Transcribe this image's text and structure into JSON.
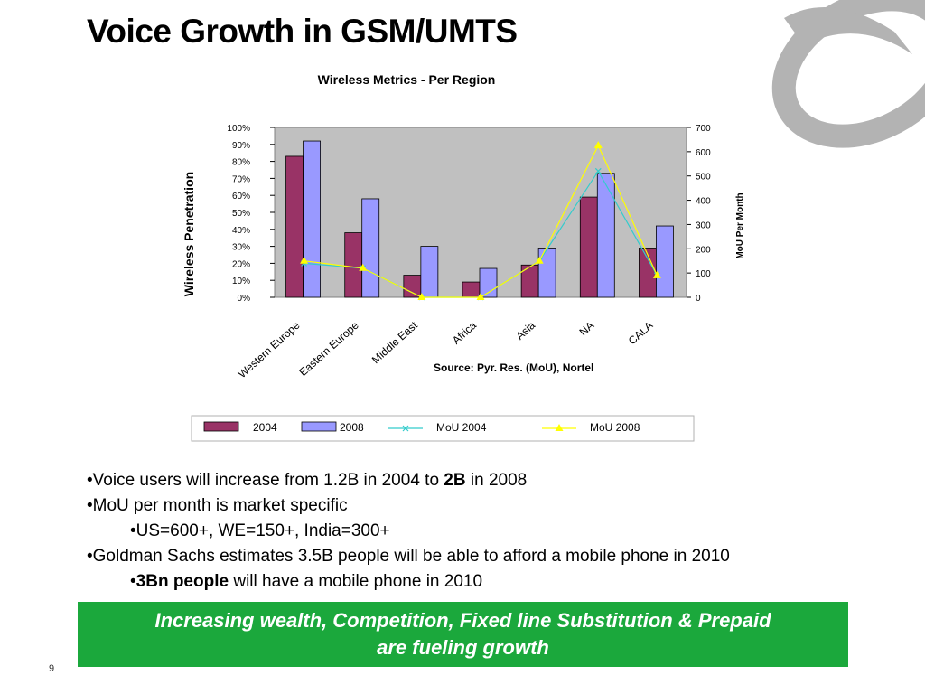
{
  "slide": {
    "title": "Voice Growth in GSM/UMTS",
    "page_number": "9"
  },
  "chart_data": {
    "type": "bar",
    "title": "Wireless Metrics - Per Region",
    "categories": [
      "Western Europe",
      "Eastern Europe",
      "Middle East",
      "Africa",
      "Asia",
      "NA",
      "CALA"
    ],
    "series": [
      {
        "name": "2004",
        "kind": "bar",
        "axis": "left",
        "color": "#993366",
        "values": [
          83,
          38,
          13,
          9,
          19,
          59,
          29
        ]
      },
      {
        "name": "2008",
        "kind": "bar",
        "axis": "left",
        "color": "#9999ff",
        "values": [
          92,
          58,
          30,
          17,
          29,
          73,
          42
        ]
      },
      {
        "name": "MoU 2004",
        "kind": "line",
        "axis": "right",
        "color": "#33cccc",
        "values": [
          140,
          120,
          0,
          0,
          150,
          520,
          90
        ]
      },
      {
        "name": "MoU 2008",
        "kind": "line",
        "axis": "right",
        "color": "#ffff00",
        "values": [
          150,
          120,
          0,
          0,
          150,
          625,
          90
        ]
      }
    ],
    "ylabel": "Wireless Penetration",
    "y2label": "MoU Per Month",
    "ylim": [
      0,
      100
    ],
    "y2lim": [
      0,
      700
    ],
    "yticks": [
      "0%",
      "10%",
      "20%",
      "30%",
      "40%",
      "50%",
      "60%",
      "70%",
      "80%",
      "90%",
      "100%"
    ],
    "y2ticks": [
      "0",
      "100",
      "200",
      "300",
      "400",
      "500",
      "600",
      "700"
    ],
    "grid": false,
    "plot_background": "#c0c0c0",
    "legend_position": "bottom",
    "annotation": "Source: Pyr. Res. (MoU), Nortel"
  },
  "bullets": [
    {
      "level": 1,
      "text": "•Voice users will increase from 1.2B in 2004 to ",
      "bold": "2B",
      "after": " in 2008"
    },
    {
      "level": 1,
      "text": "•MoU per month is market specific",
      "bold": "",
      "after": ""
    },
    {
      "level": 2,
      "text": "•US=600+, WE=150+, India=300+",
      "bold": "",
      "after": ""
    },
    {
      "level": 1,
      "text": "•Goldman Sachs estimates 3.5B people will be able to afford a mobile phone in 2010",
      "bold": "",
      "after": ""
    },
    {
      "level": 2,
      "text": "•",
      "bold": "3Bn people",
      "after": " will have a mobile phone in 2010"
    }
  ],
  "banner": {
    "line1": "Increasing wealth, Competition, Fixed line Substitution & Prepaid",
    "line2": "are fueling growth",
    "color": "#1ba83c"
  },
  "colors": {
    "logo": "#b3b3b3"
  }
}
